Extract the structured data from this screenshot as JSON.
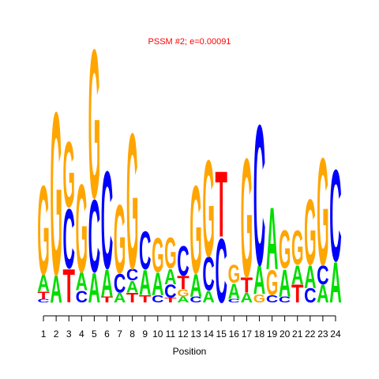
{
  "chart_data": {
    "type": "logo",
    "title": "PSSM #2; e=0.00091",
    "xlabel": "Position",
    "xlim": [
      0.5,
      24.5
    ],
    "xticks": [
      1,
      2,
      3,
      4,
      5,
      6,
      7,
      8,
      9,
      10,
      11,
      12,
      13,
      14,
      15,
      16,
      17,
      18,
      19,
      20,
      21,
      22,
      23,
      24
    ],
    "ylim": [
      0,
      2.2
    ],
    "series": [
      {
        "name": "A",
        "color": "#00dd00",
        "values": [
          0.14,
          0.23,
          null,
          0.15,
          0.25,
          0.23,
          0.08,
          0.1,
          0.21,
          0.19,
          0.13,
          0.05,
          0.19,
          0.1,
          null,
          0.13,
          0.08,
          0.24,
          0.52,
          0.23,
          0.16,
          0.19,
          0.15,
          0.34
        ]
      },
      {
        "name": "C",
        "color": "#0000ff",
        "values": [
          0.03,
          null,
          0.5,
          0.1,
          0.61,
          0.82,
          0.16,
          0.1,
          0.32,
          0.06,
          0.11,
          0.25,
          0.05,
          0.28,
          0.54,
          0.03,
          null,
          1.18,
          0.06,
          0.05,
          null,
          0.12,
          0.16,
          0.77
        ]
      },
      {
        "name": "G",
        "color": "#ffa500",
        "values": [
          0.75,
          1.37,
          0.55,
          0.74,
          1.25,
          null,
          0.58,
          1.14,
          null,
          0.29,
          0.26,
          0.06,
          0.74,
          0.81,
          null,
          0.15,
          1.0,
          0.07,
          0.21,
          0.32,
          0.29,
          0.55,
          0.9,
          null
        ]
      },
      {
        "name": "T",
        "color": "#ff0000",
        "values": [
          0.06,
          null,
          0.28,
          null,
          null,
          0.05,
          null,
          0.08,
          0.06,
          null,
          0.04,
          0.11,
          null,
          null,
          0.55,
          null,
          0.13,
          null,
          null,
          null,
          0.15,
          null,
          null,
          null
        ]
      }
    ]
  }
}
